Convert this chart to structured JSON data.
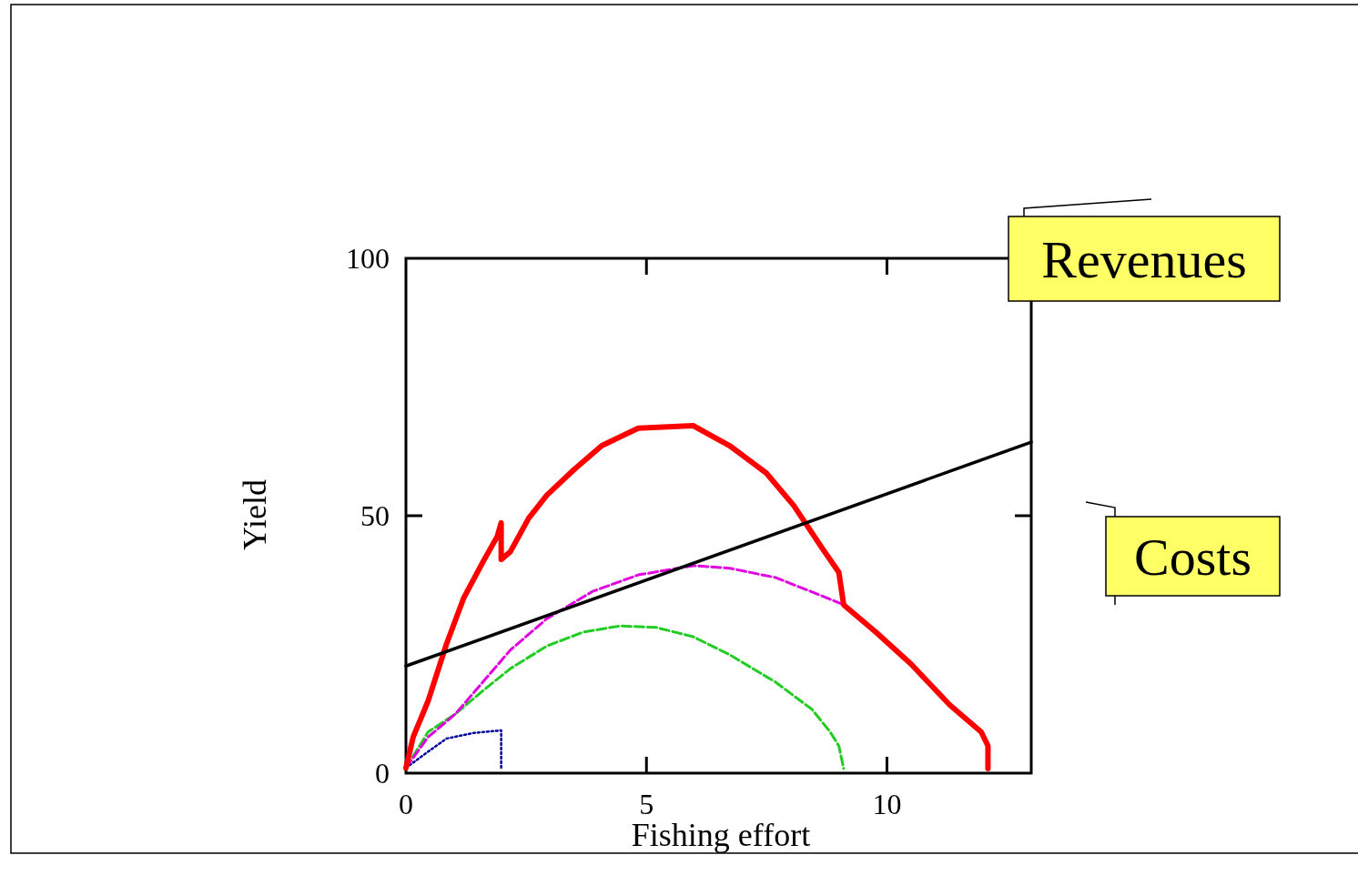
{
  "chart_data": {
    "type": "line",
    "xlabel": "Fishing effort",
    "ylabel": "Yield",
    "xlim": [
      0,
      13
    ],
    "ylim": [
      0,
      100
    ],
    "xticks": [
      0,
      5,
      10
    ],
    "yticks": [
      0,
      50,
      100
    ],
    "grid": false,
    "marker": "none",
    "annotations": [
      "Revenues",
      "Costs"
    ],
    "series": [
      {
        "color": "#00009e",
        "line_style": "dotted",
        "x": [
          0,
          0.36,
          0.84,
          1.4,
          1.98,
          1.98
        ],
        "values": [
          1,
          3.5,
          6.7,
          7.8,
          8.3,
          0.9
        ]
      },
      {
        "color": "#22cc22",
        "line_style": "dashed",
        "x": [
          0,
          0.46,
          1.03,
          1.6,
          2.17,
          2.93,
          3.69,
          4.45,
          5.2,
          5.97,
          6.73,
          7.68,
          8.44,
          8.82,
          9.0,
          9.1
        ],
        "values": [
          1,
          8,
          11.5,
          16,
          20.3,
          24.7,
          27.4,
          28.6,
          28.3,
          26.5,
          23,
          17.7,
          12.4,
          8,
          5.3,
          0.9
        ]
      },
      {
        "color": "#e000e0",
        "line_style": "dashed",
        "x": [
          0,
          0.46,
          1.03,
          1.6,
          2.17,
          2.93,
          3.88,
          4.83,
          5.97,
          6.73,
          7.68,
          8.63,
          9.1
        ],
        "values": [
          1,
          7,
          11.5,
          17.7,
          23.9,
          30,
          35.3,
          38.5,
          40.3,
          39.8,
          38,
          34.5,
          32.7
        ]
      },
      {
        "color": "#ff0000",
        "line_style": "solid",
        "x": [
          0,
          0.15,
          0.46,
          0.84,
          1.2,
          1.6,
          1.9,
          1.98,
          1.98,
          2.17,
          2.55,
          2.93,
          3.5,
          4.07,
          4.83,
          5.97,
          6.73,
          7.49,
          8.06,
          8.63,
          9.0,
          9.1,
          9.77,
          10.5,
          11.3,
          11.96,
          12.1,
          12.1
        ],
        "values": [
          1,
          7,
          14,
          25,
          34,
          41,
          46,
          48.6,
          41.5,
          43,
          49.5,
          54,
          59,
          63.6,
          67,
          67.5,
          63.6,
          58.3,
          52,
          44,
          39,
          32.7,
          27.4,
          21.2,
          13.3,
          8,
          5.3,
          0.9
        ]
      },
      {
        "color": "#000000",
        "line_style": "solid",
        "x": [
          0,
          13
        ],
        "values": [
          20.8,
          64.3
        ]
      }
    ]
  }
}
